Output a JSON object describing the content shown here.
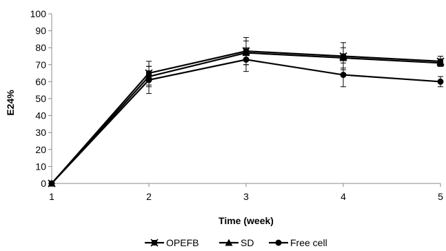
{
  "chart_data": {
    "type": "line",
    "xlabel": "Time (week)",
    "ylabel": "E24%",
    "x": [
      1,
      2,
      3,
      4,
      5
    ],
    "xticks": [
      "1",
      "2",
      "3",
      "4",
      "5"
    ],
    "xlim": [
      1,
      5
    ],
    "ylim": [
      0,
      100
    ],
    "yticks": [
      "0",
      "10",
      "20",
      "30",
      "40",
      "50",
      "60",
      "70",
      "80",
      "90",
      "100"
    ],
    "grid": false,
    "legend_position": "bottom",
    "series": [
      {
        "name": "OPEFB",
        "marker": "x-square",
        "values": [
          0,
          65,
          78,
          75,
          72
        ],
        "error": [
          0,
          7,
          8,
          8,
          3
        ],
        "color": "#000000"
      },
      {
        "name": "SD",
        "marker": "triangle",
        "values": [
          0,
          63,
          77,
          74,
          71
        ],
        "error": [
          0,
          6,
          7,
          6,
          2
        ],
        "color": "#000000"
      },
      {
        "name": "Free cell",
        "marker": "circle",
        "values": [
          0,
          61,
          73,
          64,
          60
        ],
        "error": [
          0,
          8,
          7,
          7,
          3
        ],
        "color": "#000000"
      }
    ]
  }
}
